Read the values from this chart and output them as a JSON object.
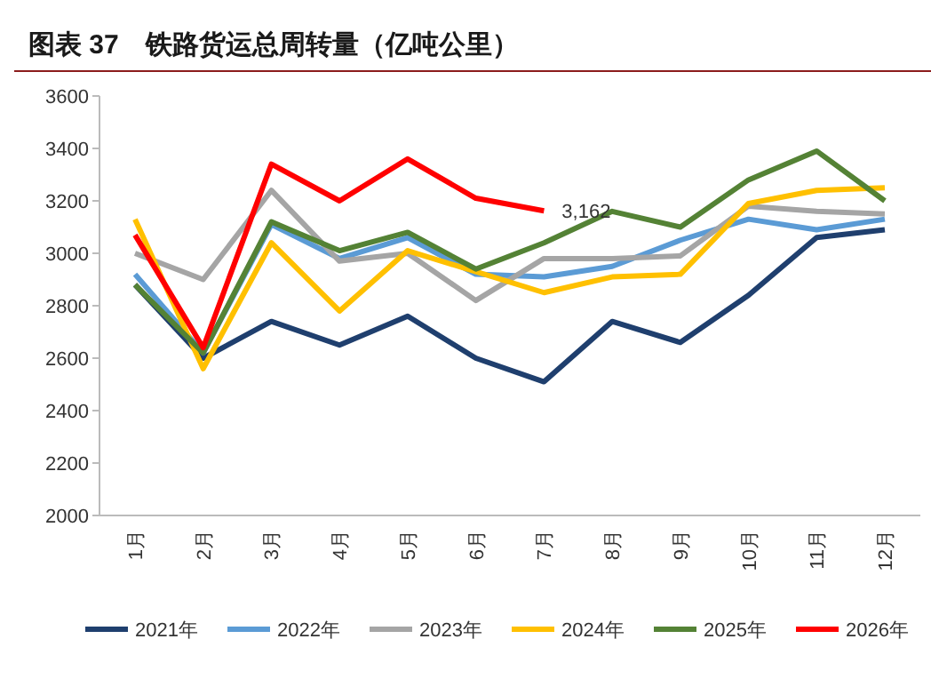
{
  "chart_data": {
    "type": "line",
    "title": "图表 37　铁路货运总周转量（亿吨公里）",
    "categories": [
      "1月",
      "2月",
      "3月",
      "4月",
      "5月",
      "6月",
      "7月",
      "8月",
      "9月",
      "10月",
      "11月",
      "12月"
    ],
    "series": [
      {
        "name": "2021年",
        "color": "#1f3f6e",
        "values": [
          2880,
          2600,
          2740,
          2650,
          2760,
          2600,
          2510,
          2740,
          2660,
          2840,
          3060,
          3090
        ]
      },
      {
        "name": "2022年",
        "color": "#5b9bd5",
        "values": [
          2920,
          2620,
          3110,
          2980,
          3060,
          2920,
          2910,
          2950,
          3050,
          3130,
          3090,
          3130
        ]
      },
      {
        "name": "2023年",
        "color": "#a5a5a5",
        "values": [
          3000,
          2900,
          3240,
          2970,
          3000,
          2820,
          2980,
          2980,
          2990,
          3180,
          3160,
          3150
        ]
      },
      {
        "name": "2024年",
        "color": "#ffc000",
        "values": [
          3130,
          2560,
          3040,
          2780,
          3010,
          2930,
          2850,
          2910,
          2920,
          3190,
          3240,
          3250
        ]
      },
      {
        "name": "2025年",
        "color": "#548235",
        "values": [
          2880,
          2620,
          3120,
          3010,
          3080,
          2940,
          3040,
          3160,
          3100,
          3280,
          3390,
          3200
        ]
      },
      {
        "name": "2026年",
        "color": "#ff0000",
        "values": [
          3070,
          2640,
          3340,
          3200,
          3360,
          3210,
          3162,
          null,
          null,
          null,
          null,
          null
        ],
        "value_labels": [
          null,
          null,
          null,
          null,
          null,
          null,
          "3,162",
          null,
          null,
          null,
          null,
          null
        ]
      }
    ],
    "ylim": [
      2000,
      3600
    ],
    "yticks": [
      2000,
      2200,
      2400,
      2600,
      2800,
      3000,
      3200,
      3400,
      3600
    ],
    "grid": false,
    "legend": "bottom",
    "marker": "none",
    "line_style": "solid"
  }
}
